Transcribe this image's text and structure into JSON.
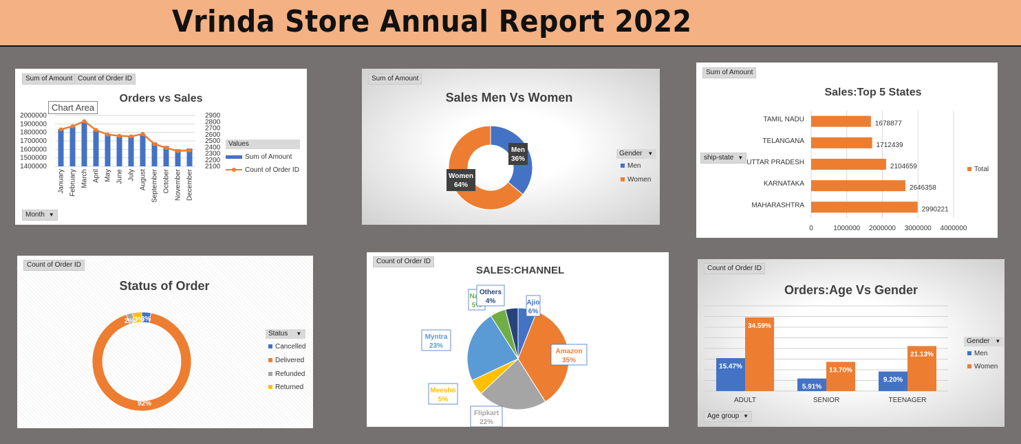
{
  "report_title": "Vrinda Store Annual Report 2022",
  "colors": {
    "blue": "#4472c4",
    "orange": "#ed7d31",
    "gray": "#a5a5a5",
    "yellow": "#ffc000",
    "lightblue": "#5b9bd5",
    "green": "#70ad47",
    "navy": "#264478",
    "banner": "#f4b183",
    "bg": "#757170"
  },
  "panel1": {
    "fields": {
      "sum": "Sum of Amount",
      "count": "Count of Order ID",
      "month": "Month"
    },
    "chart_area_label": "Chart Area",
    "legend_title": "Values",
    "chart_data": {
      "type": "bar",
      "title": "Orders vs Sales",
      "categories": [
        "January",
        "February",
        "March",
        "April",
        "May",
        "June",
        "July",
        "August",
        "September",
        "October",
        "November",
        "December"
      ],
      "series": [
        {
          "name": "Sum of Amount",
          "values": [
            1840000,
            1870000,
            1930000,
            1830000,
            1780000,
            1750000,
            1750000,
            1780000,
            1680000,
            1640000,
            1600000,
            1610000
          ]
        },
        {
          "name": "Count of Order ID",
          "values": [
            2680,
            2730,
            2810,
            2670,
            2600,
            2580,
            2570,
            2610,
            2450,
            2390,
            2340,
            2350
          ]
        }
      ],
      "y_ticks": [
        "2000000",
        "1900000",
        "1800000",
        "1700000",
        "1600000",
        "1500000",
        "1400000"
      ],
      "y2_ticks": [
        "2900",
        "2800",
        "2700",
        "2600",
        "2500",
        "2400",
        "2300",
        "2200",
        "2100"
      ],
      "ylim": [
        1400000,
        2000000
      ],
      "y2lim": [
        2100,
        2900
      ]
    }
  },
  "panel2": {
    "field": "Sum of Amount",
    "legend_title": "Gender",
    "chart_data": {
      "type": "pie",
      "title": "Sales Men Vs Women",
      "labels": [
        "Men",
        "Women"
      ],
      "values": [
        36,
        64
      ],
      "data_labels": [
        "Men\n36%",
        "Women\n64%"
      ]
    },
    "legend": [
      "Men",
      "Women"
    ]
  },
  "panel3": {
    "field": "Sum of Amount",
    "axis_field": "ship-state",
    "legend": [
      "Total"
    ],
    "chart_data": {
      "type": "bar",
      "title": "Sales:Top 5 States",
      "categories": [
        "TAMIL NADU",
        "TELANGANA",
        "UTTAR PRADESH",
        "KARNATAKA",
        "MAHARASHTRA"
      ],
      "values": [
        1678877,
        1712439,
        2104659,
        2646358,
        2990221
      ],
      "xlim": [
        0,
        4000000
      ],
      "x_ticks": [
        "0",
        "1000000",
        "2000000",
        "3000000",
        "4000000"
      ]
    }
  },
  "panel4": {
    "field": "Count of Order ID",
    "legend_title": "Status",
    "legend": [
      "Cancelled",
      "Delivered",
      "Refunded",
      "Returned"
    ],
    "chart_data": {
      "type": "pie",
      "title": "Status of Order",
      "labels": [
        "Cancelled",
        "Delivered",
        "Refunded",
        "Returned"
      ],
      "values": [
        3,
        92,
        2,
        3
      ],
      "data_labels": [
        "3%",
        "92%",
        "2%",
        "3%"
      ]
    }
  },
  "panel5": {
    "field": "Count of Order ID",
    "chart_data": {
      "type": "pie",
      "title": "SALES:CHANNEL",
      "labels": [
        "Ajio",
        "Amazon",
        "Flipkart",
        "Meesho",
        "Myntra",
        "Nalli",
        "Others"
      ],
      "values": [
        6,
        35,
        22,
        5,
        23,
        5,
        4
      ],
      "data_labels": [
        "6%",
        "35%",
        "22%",
        "5%",
        "23%",
        "5%",
        "4%"
      ]
    }
  },
  "panel6": {
    "field": "Count of Order ID",
    "axis_field": "Age group",
    "legend_title": "Gender",
    "legend": [
      "Men",
      "Women"
    ],
    "chart_data": {
      "type": "bar",
      "title": "Orders:Age Vs Gender",
      "categories": [
        "ADULT",
        "SENIOR",
        "TEENAGER"
      ],
      "series": [
        {
          "name": "Men",
          "values": [
            15.47,
            5.91,
            9.2
          ],
          "labels": [
            "15.47%",
            "5.91%",
            "9.20%"
          ]
        },
        {
          "name": "Women",
          "values": [
            34.59,
            13.7,
            21.13
          ],
          "labels": [
            "34.59%",
            "13.70%",
            "21.13%"
          ]
        }
      ],
      "ylim": [
        0,
        40
      ]
    }
  }
}
